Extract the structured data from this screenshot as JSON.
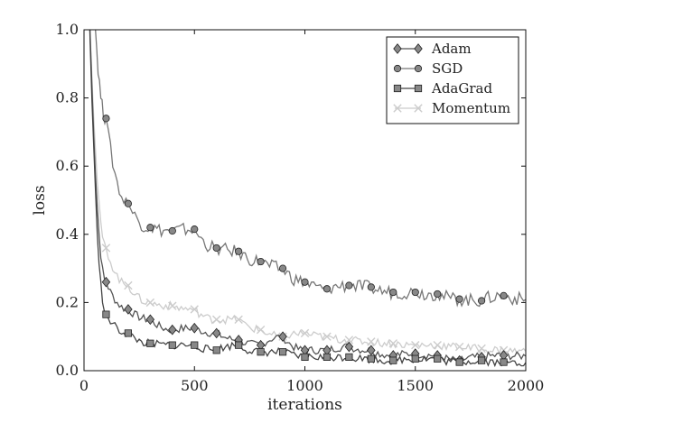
{
  "chart_data": {
    "type": "line",
    "title": "",
    "xlabel": "iterations",
    "ylabel": "loss",
    "xlim": [
      0,
      2000
    ],
    "ylim": [
      0,
      1.0
    ],
    "x_ticks": [
      "0",
      "500",
      "1000",
      "1500",
      "2000"
    ],
    "y_ticks": [
      "0.0",
      "0.2",
      "0.4",
      "0.6",
      "0.8",
      "1.0"
    ],
    "legend_position": "top-right",
    "grid": false,
    "x": [
      100,
      200,
      300,
      400,
      500,
      600,
      700,
      800,
      900,
      1000,
      1100,
      1200,
      1300,
      1400,
      1500,
      1600,
      1700,
      1800,
      1900
    ],
    "series": [
      {
        "name": "Adam",
        "marker": "diamond",
        "color": "#555555",
        "values": [
          0.26,
          0.18,
          0.15,
          0.12,
          0.125,
          0.11,
          0.09,
          0.075,
          0.1,
          0.06,
          0.06,
          0.07,
          0.06,
          0.045,
          0.05,
          0.045,
          0.03,
          0.04,
          0.045
        ]
      },
      {
        "name": "SGD",
        "marker": "circle",
        "color": "#777777",
        "values": [
          0.74,
          0.49,
          0.42,
          0.41,
          0.415,
          0.36,
          0.35,
          0.32,
          0.3,
          0.26,
          0.24,
          0.25,
          0.245,
          0.23,
          0.23,
          0.225,
          0.21,
          0.205,
          0.22
        ]
      },
      {
        "name": "AdaGrad",
        "marker": "square",
        "color": "#444444",
        "values": [
          0.165,
          0.11,
          0.08,
          0.075,
          0.075,
          0.06,
          0.075,
          0.055,
          0.055,
          0.04,
          0.04,
          0.04,
          0.035,
          0.03,
          0.035,
          0.035,
          0.025,
          0.03,
          0.025
        ]
      },
      {
        "name": "Momentum",
        "marker": "x",
        "color": "#cccccc",
        "values": [
          0.36,
          0.25,
          0.2,
          0.19,
          0.18,
          0.15,
          0.15,
          0.12,
          0.1,
          0.11,
          0.1,
          0.09,
          0.085,
          0.08,
          0.075,
          0.075,
          0.07,
          0.065,
          0.06
        ]
      }
    ]
  }
}
